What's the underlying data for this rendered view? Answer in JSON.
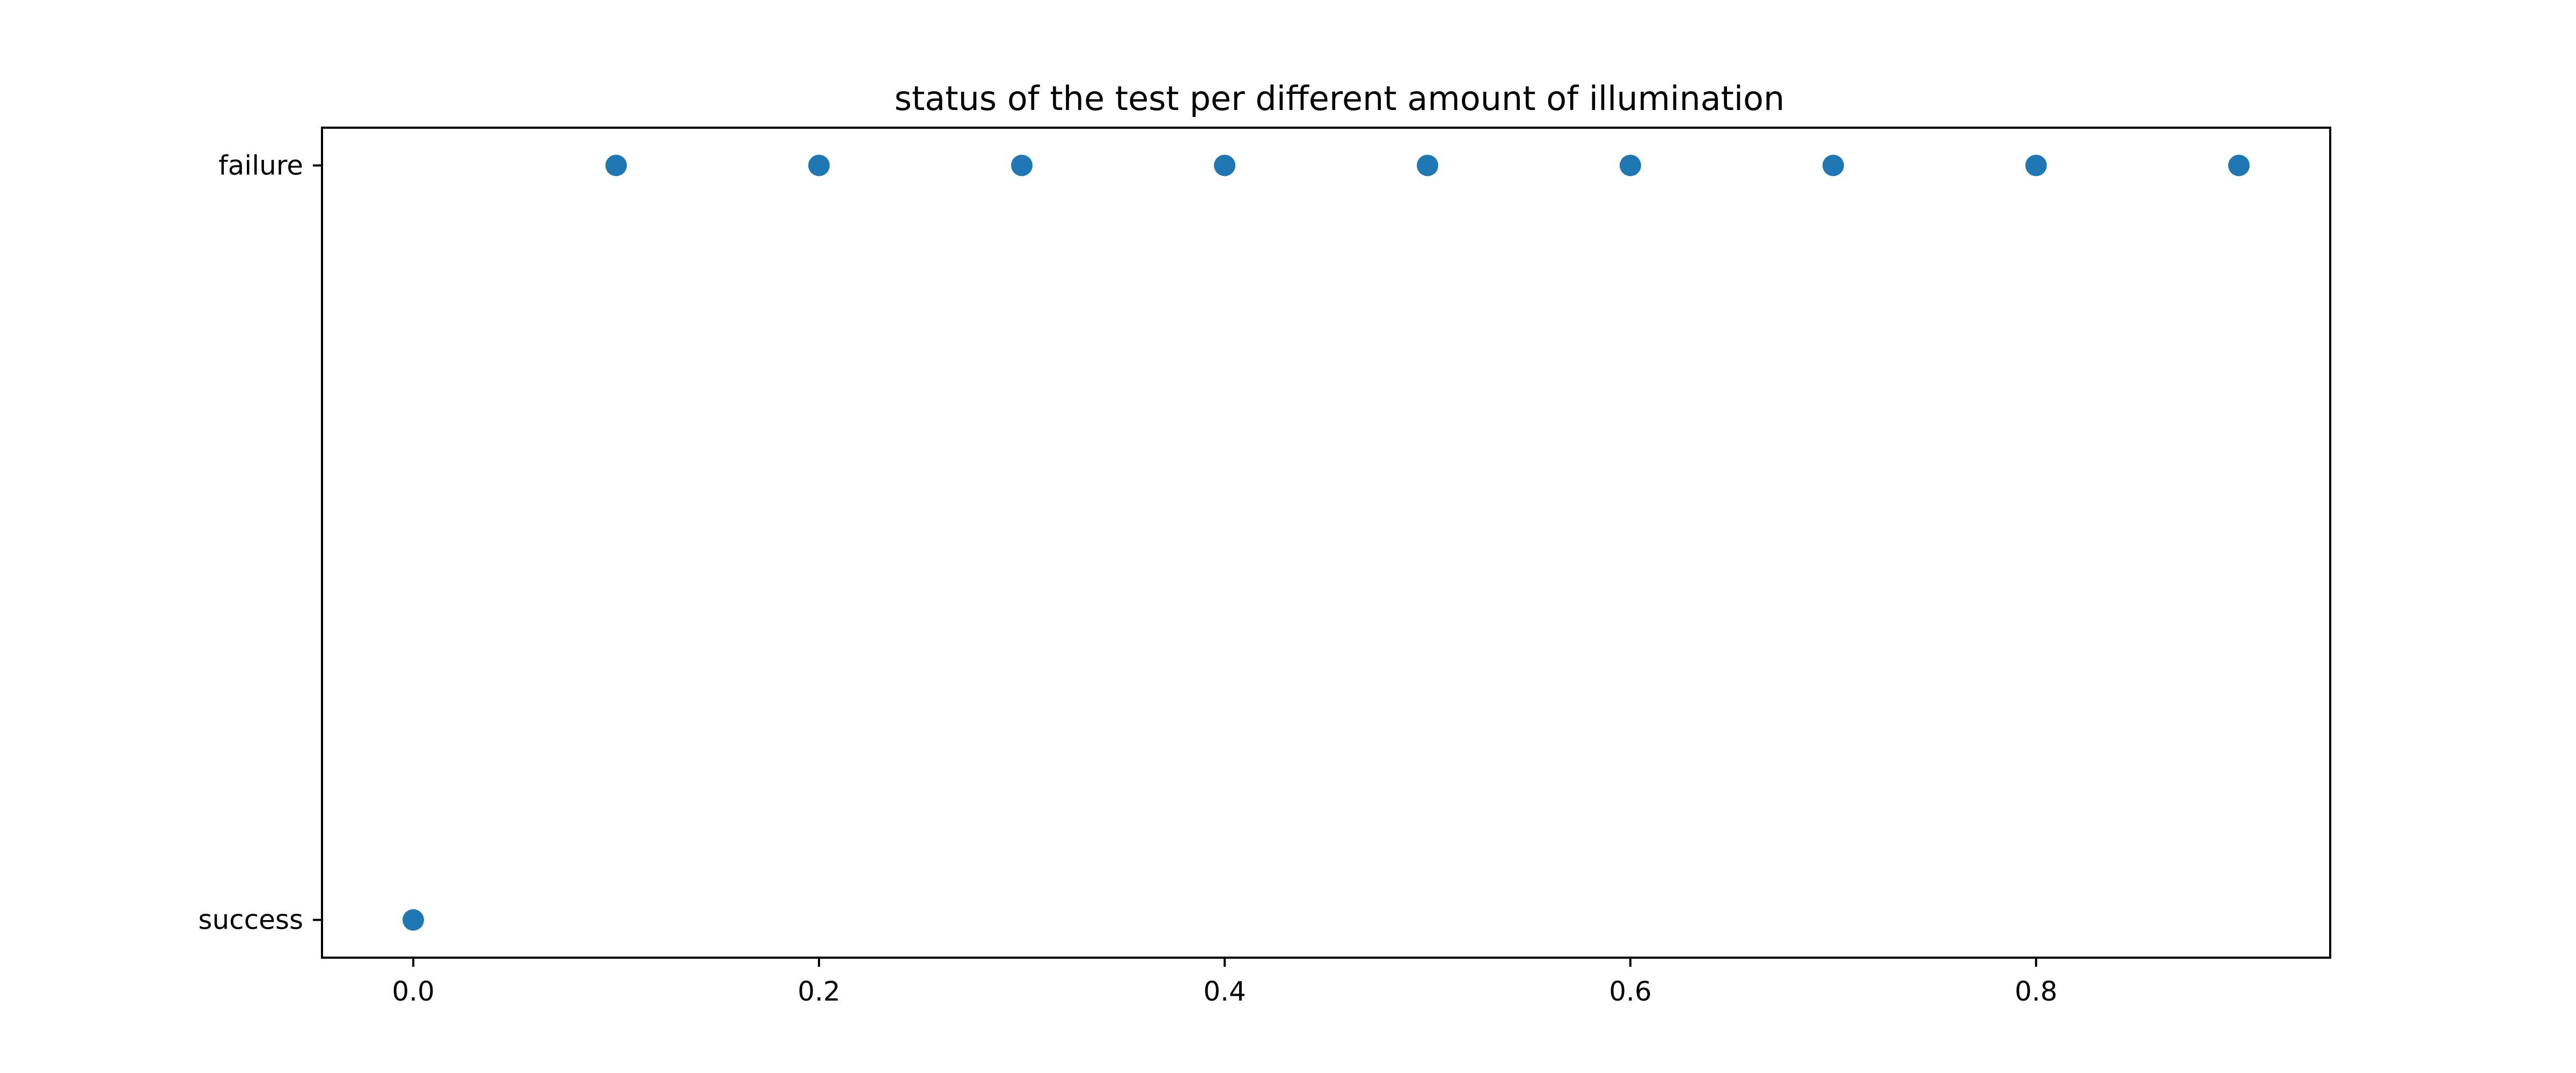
{
  "chart_data": {
    "type": "scatter",
    "title": "status of the test per different amount of illumination",
    "xlabel": "",
    "ylabel": "",
    "x": [
      0.0,
      0.1,
      0.2,
      0.3,
      0.4,
      0.5,
      0.6,
      0.7,
      0.8,
      0.9
    ],
    "y": [
      "success",
      "failure",
      "failure",
      "failure",
      "failure",
      "failure",
      "failure",
      "failure",
      "failure",
      "failure"
    ],
    "y_categories": [
      "success",
      "failure"
    ],
    "xlim": [
      -0.045,
      0.945
    ],
    "x_ticks": [
      0.0,
      0.2,
      0.4,
      0.6,
      0.8
    ],
    "x_tick_labels": [
      "0.0",
      "0.2",
      "0.4",
      "0.6",
      "0.8"
    ],
    "marker_color": "#1f77b4",
    "grid": false,
    "legend": false
  }
}
